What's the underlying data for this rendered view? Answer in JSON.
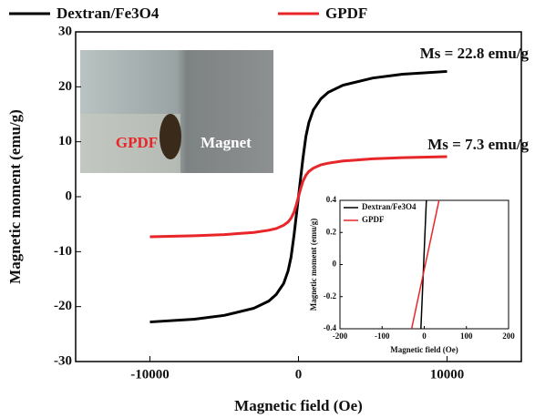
{
  "chart_data": [
    {
      "type": "line",
      "x_label": "Magnetic field (Oe)",
      "y_label": "Magnetic moment (emu/g)",
      "xlim": [
        -15000,
        15000
      ],
      "xticks": [
        -10000,
        0,
        10000
      ],
      "ylim": [
        -30,
        30
      ],
      "yticks": [
        -30,
        -20,
        -10,
        0,
        10,
        20,
        30
      ],
      "legend": "top",
      "x": [
        -10000,
        -7000,
        -5000,
        -3000,
        -2000,
        -1500,
        -1000,
        -700,
        -500,
        -300,
        -150,
        0,
        150,
        300,
        500,
        700,
        1000,
        1500,
        2000,
        3000,
        5000,
        7000,
        10000
      ],
      "series": [
        {
          "name": "Dextran/Fe3O4",
          "color": "#000000",
          "values": [
            -22.8,
            -22.3,
            -21.6,
            -20.3,
            -19.0,
            -17.8,
            -15.8,
            -13.5,
            -11.0,
            -7.0,
            -3.5,
            0,
            3.5,
            7.0,
            11.0,
            13.5,
            15.8,
            17.8,
            19.0,
            20.3,
            21.6,
            22.3,
            22.8
          ]
        },
        {
          "name": "GPDF",
          "color": "#e8262a",
          "values": [
            -7.3,
            -7.1,
            -6.9,
            -6.5,
            -6.1,
            -5.8,
            -5.2,
            -4.6,
            -3.9,
            -2.8,
            -1.5,
            0,
            1.5,
            2.8,
            3.9,
            4.6,
            5.2,
            5.8,
            6.1,
            6.5,
            6.9,
            7.1,
            7.3
          ]
        }
      ],
      "annotations": [
        "Ms = 22.8 emu/g",
        "Ms = 7.3 emu/g"
      ],
      "image_labels": [
        "GPDF",
        "Magnet"
      ]
    },
    {
      "type": "line",
      "x_label": "Magnetic field (Oe)",
      "y_label": "Magnetic moment (emu/g)",
      "xlim": [
        -200,
        200
      ],
      "xticks": [
        -200,
        -100,
        0,
        100,
        200
      ],
      "ylim": [
        -0.4,
        0.4
      ],
      "yticks": [
        -0.4,
        -0.2,
        0,
        0.2,
        0.4
      ],
      "legend": "upper left",
      "series": [
        {
          "name": "Dextran/Fe3O4",
          "color": "#000000",
          "x": [
            -8,
            5
          ],
          "values": [
            -0.4,
            0.4
          ]
        },
        {
          "name": "GPDF",
          "color": "#e8262a",
          "x": [
            -30,
            35
          ],
          "values": [
            -0.4,
            0.4
          ]
        }
      ]
    }
  ]
}
